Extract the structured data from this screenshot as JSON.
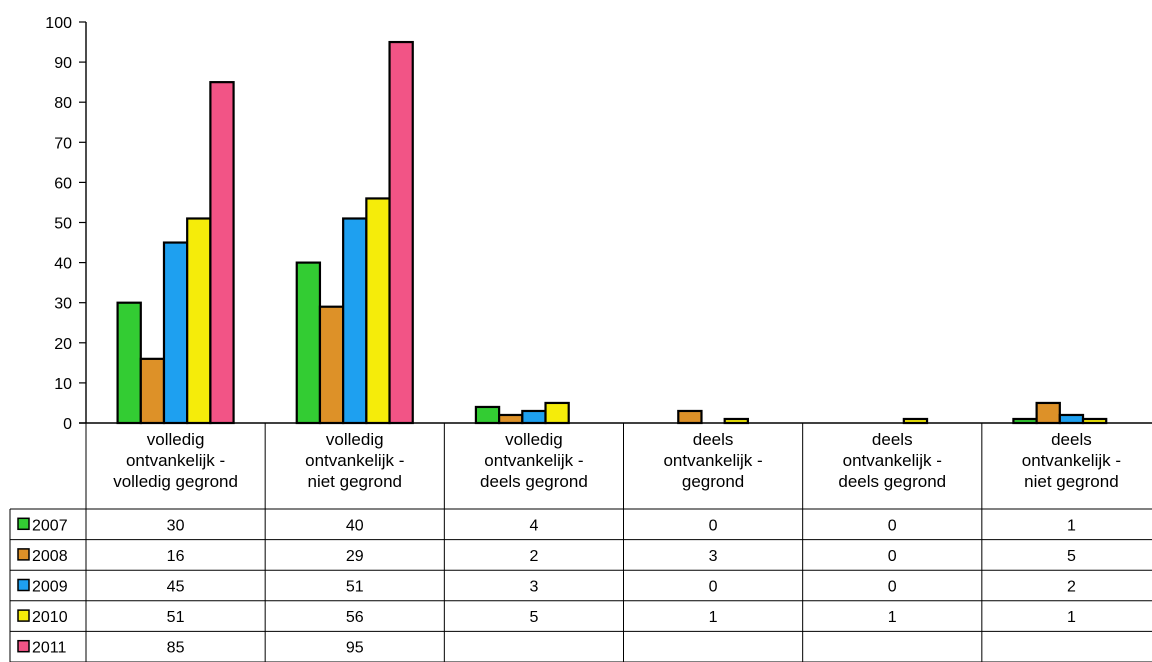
{
  "chart_data": {
    "type": "bar",
    "categories": [
      "volledig ontvankelijk - volledig gegrond",
      "volledig ontvankelijk - niet gegrond",
      "volledig ontvankelijk - deels gegrond",
      "deels ontvankelijk - gegrond",
      "deels ontvankelijk - deels gegrond",
      "deels ontvankelijk - niet gegrond"
    ],
    "category_lines": [
      [
        "volledig",
        "ontvankelijk -",
        "volledig gegrond"
      ],
      [
        "volledig",
        "ontvankelijk -",
        "niet gegrond"
      ],
      [
        "volledig",
        "ontvankelijk -",
        "deels gegrond"
      ],
      [
        "deels",
        "ontvankelijk -",
        "gegrond"
      ],
      [
        "deels",
        "ontvankelijk -",
        "deels gegrond"
      ],
      [
        "deels",
        "ontvankelijk -",
        "niet gegrond"
      ]
    ],
    "series": [
      {
        "name": "2007",
        "color": "#33cc33",
        "values": [
          30,
          40,
          4,
          0,
          0,
          1
        ]
      },
      {
        "name": "2008",
        "color": "#dd9128",
        "values": [
          16,
          29,
          2,
          3,
          0,
          5
        ]
      },
      {
        "name": "2009",
        "color": "#1ea0f0",
        "values": [
          45,
          51,
          3,
          0,
          0,
          2
        ]
      },
      {
        "name": "2010",
        "color": "#f5ec0a",
        "values": [
          51,
          56,
          5,
          1,
          1,
          1
        ]
      },
      {
        "name": "2011",
        "color": "#f25486",
        "values": [
          85,
          95,
          null,
          null,
          null,
          null
        ]
      }
    ],
    "ylim": [
      0,
      100
    ],
    "yticks": [
      0,
      10,
      20,
      30,
      40,
      50,
      60,
      70,
      80,
      90,
      100
    ],
    "grid": false,
    "legend": "data-table",
    "title": "",
    "xlabel": "",
    "ylabel": ""
  }
}
